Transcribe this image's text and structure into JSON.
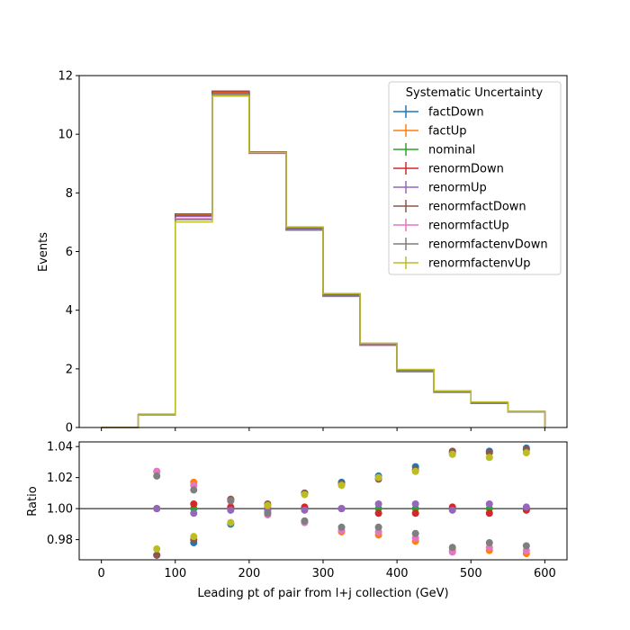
{
  "chart_data": [
    {
      "type": "step",
      "panel": "main",
      "ylabel": "Events",
      "xlim": [
        -30,
        630
      ],
      "ylim": [
        0,
        12
      ],
      "yticks": [
        0,
        2,
        4,
        6,
        8,
        10,
        12
      ],
      "legend": {
        "title": "Systematic Uncertainty",
        "placement": "top-right"
      },
      "bin_edges": [
        0,
        50,
        100,
        150,
        200,
        250,
        300,
        350,
        400,
        450,
        500,
        550,
        600
      ],
      "series": [
        {
          "name": "factDown",
          "color": "#1f77b4",
          "values": [
            0,
            0.43,
            7.1,
            11.36,
            9.4,
            6.8,
            4.56,
            2.86,
            1.96,
            1.24,
            0.85,
            0.55
          ]
        },
        {
          "name": "factUp",
          "color": "#ff7f0e",
          "values": [
            0,
            0.44,
            7.26,
            11.44,
            9.35,
            6.73,
            4.48,
            2.81,
            1.91,
            1.22,
            0.83,
            0.53
          ]
        },
        {
          "name": "nominal",
          "color": "#2ca02c",
          "values": [
            0,
            0.44,
            7.2,
            11.4,
            9.38,
            6.78,
            4.52,
            2.84,
            1.94,
            1.23,
            0.84,
            0.54
          ]
        },
        {
          "name": "renormDown",
          "color": "#d62728",
          "values": [
            0,
            0.43,
            7.22,
            11.41,
            9.38,
            6.79,
            4.52,
            2.83,
            1.93,
            1.23,
            0.84,
            0.54
          ]
        },
        {
          "name": "renormUp",
          "color": "#9467bd",
          "values": [
            0,
            0.44,
            7.2,
            11.39,
            9.37,
            6.78,
            4.52,
            2.85,
            1.95,
            1.23,
            0.84,
            0.54
          ]
        },
        {
          "name": "renormfactDown",
          "color": "#8c564b",
          "values": [
            0,
            0.43,
            7.28,
            11.47,
            9.4,
            6.83,
            4.55,
            2.87,
            1.97,
            1.24,
            0.85,
            0.55
          ]
        },
        {
          "name": "renormfactUp",
          "color": "#e377c2",
          "values": [
            0,
            0.45,
            7.12,
            11.36,
            9.35,
            6.73,
            4.47,
            2.8,
            1.9,
            1.2,
            0.82,
            0.53
          ]
        },
        {
          "name": "renormfactenvDown",
          "color": "#7f7f7f",
          "values": [
            0,
            0.45,
            7.09,
            11.36,
            9.36,
            6.73,
            4.48,
            2.81,
            1.91,
            1.2,
            0.82,
            0.53
          ]
        },
        {
          "name": "renormfactenvUp",
          "color": "#bcbd22",
          "values": [
            0,
            0.43,
            7.01,
            11.3,
            9.38,
            6.84,
            4.57,
            2.87,
            1.98,
            1.25,
            0.87,
            0.55
          ]
        }
      ]
    },
    {
      "type": "scatter",
      "panel": "ratio",
      "xlabel": "Leading pt of pair from l+j collection (GeV)",
      "ylabel": "Ratio",
      "xlim": [
        -30,
        630
      ],
      "ylim": [
        0.967,
        1.043
      ],
      "yticks": [
        0.98,
        1.0,
        1.02,
        1.04
      ],
      "ytick_labels": [
        "0.98",
        "1.00",
        "1.02",
        "1.04"
      ],
      "xticks": [
        0,
        100,
        200,
        300,
        400,
        500,
        600
      ],
      "reference_line": 1.0,
      "x": [
        75,
        125,
        175,
        225,
        275,
        325,
        375,
        425,
        475,
        525,
        575
      ],
      "series": [
        {
          "name": "factDown",
          "color": "#1f77b4",
          "values": [
            0.97,
            0.978,
            0.99,
            1.002,
            1.01,
            1.017,
            1.021,
            1.027,
            1.036,
            1.037,
            1.039
          ]
        },
        {
          "name": "factUp",
          "color": "#ff7f0e",
          "values": [
            1.024,
            1.017,
            1.006,
            0.998,
            0.992,
            0.985,
            0.983,
            0.979,
            0.973,
            0.973,
            0.971
          ]
        },
        {
          "name": "nominal",
          "color": "#2ca02c",
          "values": [
            1.0,
            1.0,
            1.0,
            1.0,
            1.0,
            1.0,
            1.0,
            1.0,
            1.0,
            1.0,
            1.0
          ]
        },
        {
          "name": "renormDown",
          "color": "#d62728",
          "values": [
            1.0,
            1.003,
            1.001,
            1.0,
            1.001,
            1.0,
            0.997,
            0.997,
            1.001,
            0.997,
            0.999
          ]
        },
        {
          "name": "renormUp",
          "color": "#9467bd",
          "values": [
            1.0,
            0.997,
            0.999,
            0.999,
            0.999,
            1.0,
            1.003,
            1.003,
            0.999,
            1.003,
            1.001
          ]
        },
        {
          "name": "renormfactDown",
          "color": "#8c564b",
          "values": [
            0.97,
            0.98,
            1.006,
            1.003,
            1.01,
            1.016,
            1.019,
            1.025,
            1.037,
            1.036,
            1.038
          ]
        },
        {
          "name": "renormfactUp",
          "color": "#e377c2",
          "values": [
            1.024,
            1.015,
            1.005,
            0.996,
            0.991,
            0.986,
            0.985,
            0.981,
            0.972,
            0.975,
            0.973
          ]
        },
        {
          "name": "renormfactenvDown",
          "color": "#7f7f7f",
          "values": [
            1.021,
            1.012,
            1.005,
            0.997,
            0.992,
            0.988,
            0.988,
            0.984,
            0.975,
            0.978,
            0.976
          ]
        },
        {
          "name": "renormfactenvUp",
          "color": "#bcbd22",
          "values": [
            0.974,
            0.982,
            0.991,
            1.002,
            1.009,
            1.015,
            1.02,
            1.024,
            1.035,
            1.033,
            1.036
          ]
        }
      ]
    }
  ]
}
